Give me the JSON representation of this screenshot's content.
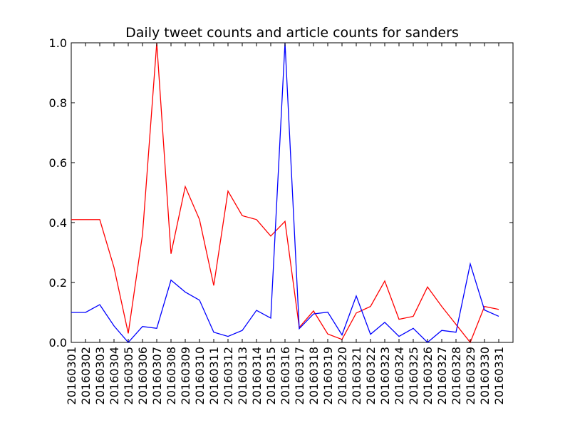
{
  "chart_data": {
    "type": "line",
    "title": "Daily tweet counts and article counts for sanders",
    "xlabel": "",
    "ylabel": "",
    "ylim": [
      0,
      1.0
    ],
    "yticks": [
      "0.0",
      "0.2",
      "0.4",
      "0.6",
      "0.8",
      "1.0"
    ],
    "categories": [
      "20160301",
      "20160302",
      "20160303",
      "20160304",
      "20160305",
      "20160306",
      "20160307",
      "20160308",
      "20160309",
      "20160310",
      "20160311",
      "20160312",
      "20160313",
      "20160314",
      "20160315",
      "20160316",
      "20160317",
      "20160318",
      "20160319",
      "20160320",
      "20160321",
      "20160322",
      "20160323",
      "20160324",
      "20160325",
      "20160326",
      "20160327",
      "20160328",
      "20160329",
      "20160330",
      "20160331"
    ],
    "series": [
      {
        "color": "#ff0000",
        "values": [
          0.41,
          0.41,
          0.41,
          0.25,
          0.03,
          0.36,
          1.0,
          0.296,
          0.52,
          0.41,
          0.19,
          0.505,
          0.423,
          0.41,
          0.355,
          0.404,
          0.05,
          0.105,
          0.028,
          0.01,
          0.098,
          0.12,
          0.205,
          0.077,
          0.087,
          0.185,
          0.12,
          0.06,
          0.0,
          0.12,
          0.11
        ]
      },
      {
        "color": "#0000ff",
        "values": [
          0.1,
          0.1,
          0.126,
          0.055,
          0.0,
          0.053,
          0.047,
          0.208,
          0.168,
          0.141,
          0.034,
          0.02,
          0.04,
          0.107,
          0.081,
          1.0,
          0.046,
          0.095,
          0.101,
          0.025,
          0.155,
          0.027,
          0.067,
          0.02,
          0.047,
          0.0,
          0.04,
          0.034,
          0.262,
          0.108,
          0.087
        ]
      }
    ],
    "grid": false,
    "legend": "none"
  }
}
